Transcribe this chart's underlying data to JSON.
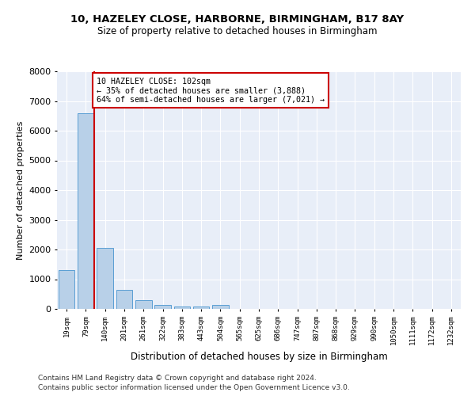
{
  "title1": "10, HAZELEY CLOSE, HARBORNE, BIRMINGHAM, B17 8AY",
  "title2": "Size of property relative to detached houses in Birmingham",
  "xlabel": "Distribution of detached houses by size in Birmingham",
  "ylabel": "Number of detached properties",
  "categories": [
    "19sqm",
    "79sqm",
    "140sqm",
    "201sqm",
    "261sqm",
    "322sqm",
    "383sqm",
    "443sqm",
    "504sqm",
    "565sqm",
    "625sqm",
    "686sqm",
    "747sqm",
    "807sqm",
    "868sqm",
    "929sqm",
    "990sqm",
    "1050sqm",
    "1111sqm",
    "1172sqm",
    "1232sqm"
  ],
  "values": [
    1300,
    6600,
    2050,
    650,
    290,
    130,
    90,
    70,
    130,
    0,
    0,
    0,
    0,
    0,
    0,
    0,
    0,
    0,
    0,
    0,
    0
  ],
  "bar_color": "#b8d0e8",
  "bar_edge_color": "#5a9fd4",
  "property_line_color": "#cc0000",
  "annotation_text": "10 HAZELEY CLOSE: 102sqm\n← 35% of detached houses are smaller (3,888)\n64% of semi-detached houses are larger (7,021) →",
  "annotation_box_color": "#ffffff",
  "annotation_box_edge": "#cc0000",
  "ylim": [
    0,
    8000
  ],
  "yticks": [
    0,
    1000,
    2000,
    3000,
    4000,
    5000,
    6000,
    7000,
    8000
  ],
  "footer1": "Contains HM Land Registry data © Crown copyright and database right 2024.",
  "footer2": "Contains public sector information licensed under the Open Government Licence v3.0.",
  "bg_color": "#ffffff",
  "plot_bg_color": "#e8eef8",
  "grid_color": "#ffffff",
  "title1_fontsize": 9.5,
  "title2_fontsize": 8.5
}
